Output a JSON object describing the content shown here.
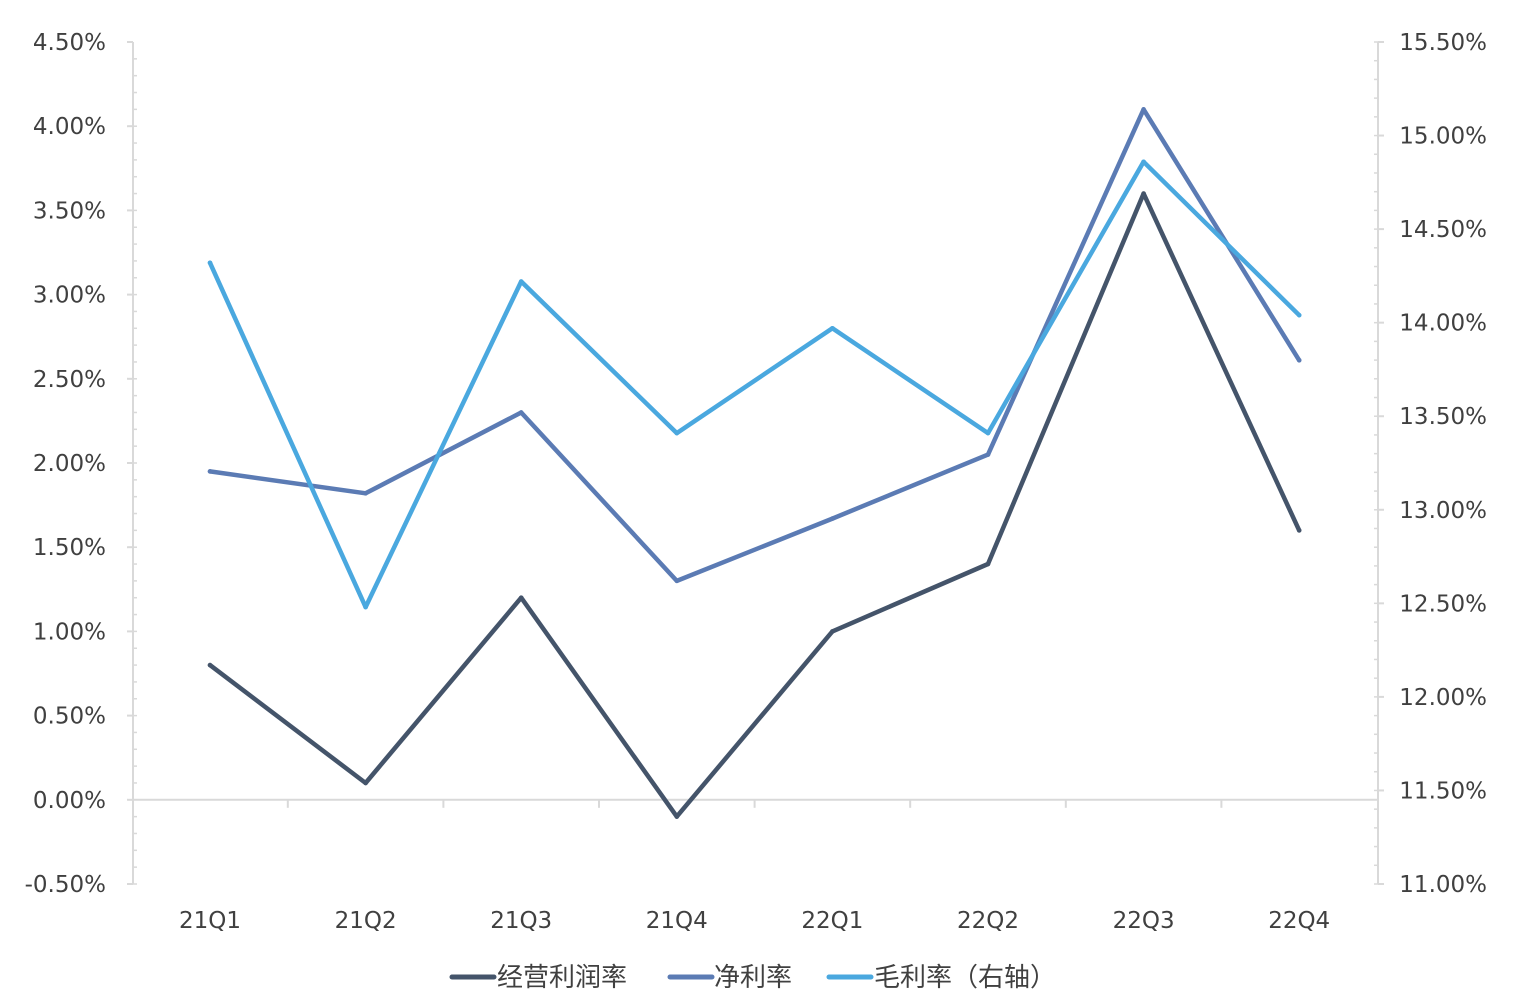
{
  "chart_data": {
    "type": "line",
    "categories": [
      "21Q1",
      "21Q2",
      "21Q3",
      "21Q4",
      "22Q1",
      "22Q2",
      "22Q3",
      "22Q4"
    ],
    "series": [
      {
        "name": "经营利润率",
        "axis": "left",
        "color": "#44546a",
        "values": [
          0.8,
          0.1,
          1.2,
          -0.1,
          1.0,
          1.4,
          3.6,
          1.6
        ]
      },
      {
        "name": "净利率",
        "axis": "left",
        "color": "#5b7bb4",
        "values": [
          1.95,
          1.82,
          2.3,
          1.3,
          1.67,
          2.05,
          4.1,
          2.61
        ]
      },
      {
        "name": "毛利率（右轴）",
        "axis": "right",
        "color": "#4aa8df",
        "values": [
          14.32,
          12.48,
          14.22,
          13.41,
          13.97,
          13.41,
          14.86,
          14.04
        ]
      }
    ],
    "y_left": {
      "min": -0.5,
      "max": 4.5,
      "step": 0.5,
      "tick_labels": [
        "-0.50%",
        "0.00%",
        "0.50%",
        "1.00%",
        "1.50%",
        "2.00%",
        "2.50%",
        "3.00%",
        "3.50%",
        "4.00%",
        "4.50%"
      ]
    },
    "y_right": {
      "min": 11.0,
      "max": 15.5,
      "step": 0.5,
      "tick_labels": [
        "11.00%",
        "11.50%",
        "12.00%",
        "12.50%",
        "13.00%",
        "13.50%",
        "14.00%",
        "14.50%",
        "15.00%",
        "15.50%"
      ]
    },
    "grid": false,
    "legend": "bottom-center"
  }
}
